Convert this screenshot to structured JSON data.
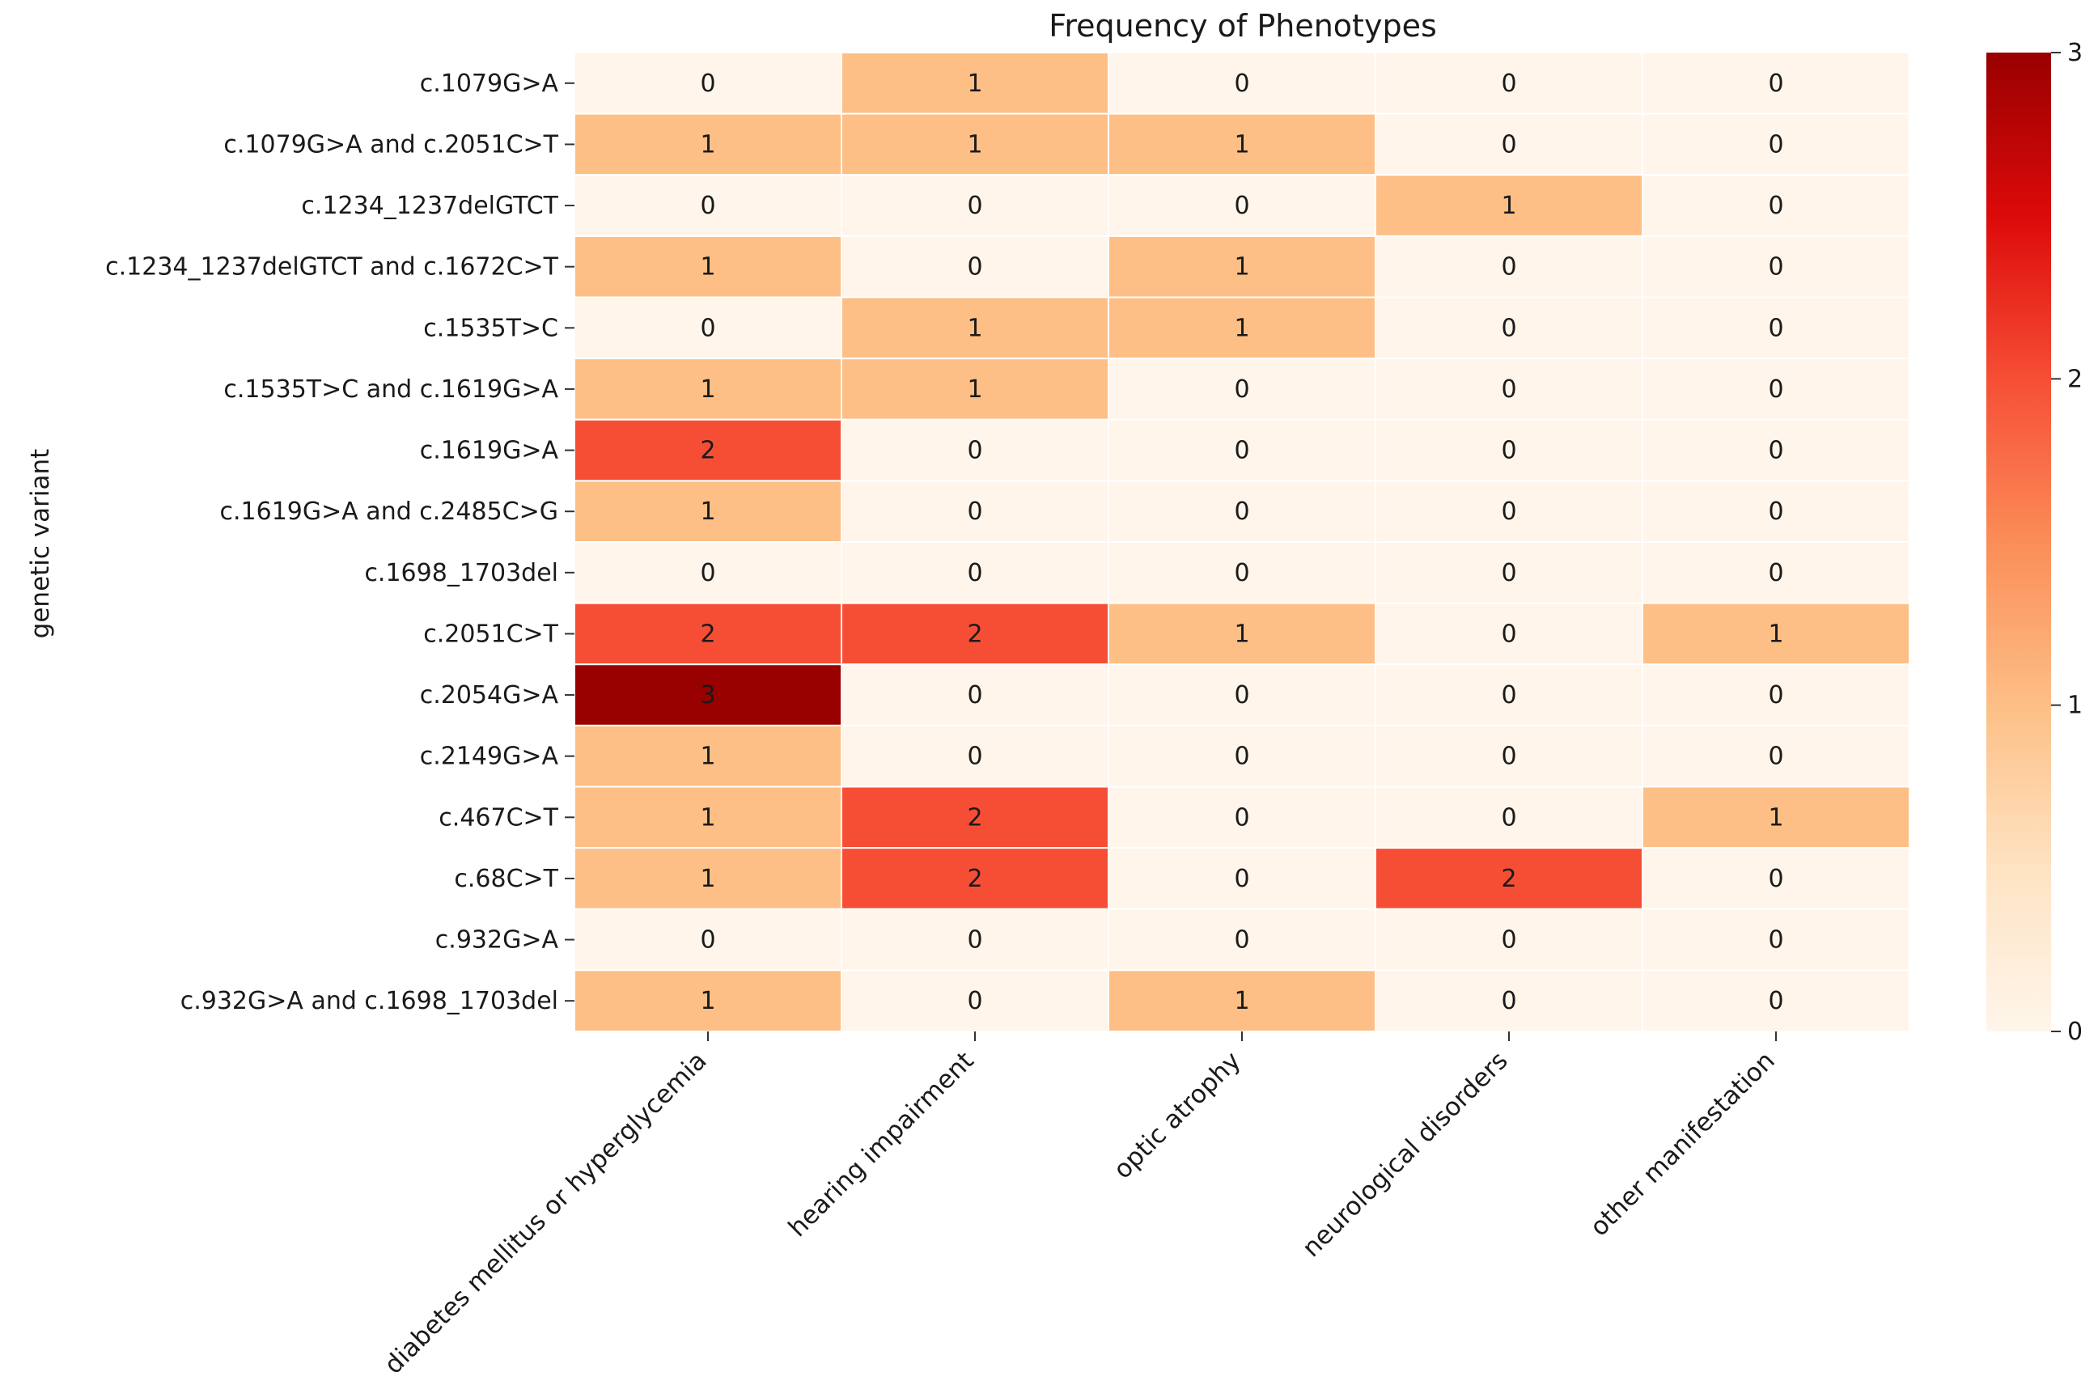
{
  "chart_data": {
    "type": "heatmap",
    "title": "Frequency of Phenotypes",
    "xlabel": "",
    "ylabel": "genetic variant",
    "rows": [
      "c.1079G>A",
      "c.1079G>A and c.2051C>T",
      "c.1234_1237delGTCT",
      "c.1234_1237delGTCT and c.1672C>T",
      "c.1535T>C",
      "c.1535T>C and c.1619G>A",
      "c.1619G>A",
      "c.1619G>A and c.2485C>G",
      "c.1698_1703del",
      "c.2051C>T",
      "c.2054G>A",
      "c.2149G>A",
      "c.467C>T",
      "c.68C>T",
      "c.932G>A",
      "c.932G>A and c.1698_1703del"
    ],
    "columns": [
      "diabetes mellitus or hyperglycemia",
      "hearing impairment",
      "optic atrophy",
      "neurological disorders",
      "other manifestation"
    ],
    "values": [
      [
        0,
        1,
        0,
        0,
        0
      ],
      [
        1,
        1,
        1,
        0,
        0
      ],
      [
        0,
        0,
        0,
        1,
        0
      ],
      [
        1,
        0,
        1,
        0,
        0
      ],
      [
        0,
        1,
        1,
        0,
        0
      ],
      [
        1,
        1,
        0,
        0,
        0
      ],
      [
        2,
        0,
        0,
        0,
        0
      ],
      [
        1,
        0,
        0,
        0,
        0
      ],
      [
        0,
        0,
        0,
        0,
        0
      ],
      [
        2,
        2,
        1,
        0,
        1
      ],
      [
        3,
        0,
        0,
        0,
        0
      ],
      [
        1,
        0,
        0,
        0,
        0
      ],
      [
        1,
        2,
        0,
        0,
        1
      ],
      [
        1,
        2,
        0,
        2,
        0
      ],
      [
        0,
        0,
        0,
        0,
        0
      ],
      [
        1,
        0,
        1,
        0,
        0
      ]
    ],
    "colorbar": {
      "range": [
        0,
        3
      ],
      "ticks": [
        "0",
        "1",
        "2",
        "3"
      ],
      "colormap": "OrRd",
      "colors": {
        "0": "#fff5eb",
        "1": "#fdbf86",
        "2": "#f64e35",
        "3": "#990000"
      },
      "gradient": [
        "#fff5eb",
        "#fee3c2",
        "#fdbf86",
        "#fb8d58",
        "#f64e35",
        "#dc0a0a",
        "#990000"
      ]
    },
    "grid": false,
    "legend": "colorbar-right"
  }
}
